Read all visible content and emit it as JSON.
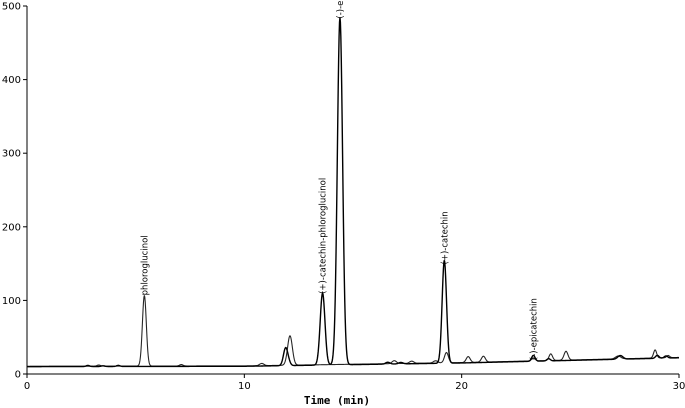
{
  "chart_data": {
    "type": "line",
    "title": "",
    "xlabel": "Time (min)",
    "ylabel": "",
    "xlim": [
      0,
      30
    ],
    "ylim": [
      0,
      500
    ],
    "x_ticks": [
      0,
      10,
      20,
      30
    ],
    "y_ticks": [
      0,
      100,
      200,
      300,
      400,
      500
    ],
    "grid": false,
    "series_color": "#000000",
    "baseline": [
      [
        0,
        10
      ],
      [
        10,
        10.5
      ],
      [
        20,
        15
      ],
      [
        30,
        22
      ]
    ],
    "series": [
      {
        "baseline_offset": 0,
        "peaks": [
          [
            2.8,
            1.5,
            0.08
          ],
          [
            3.5,
            1,
            0.08
          ],
          [
            4.2,
            1.5,
            0.08
          ],
          [
            11.9,
            24,
            0.1
          ],
          [
            12.05,
            3,
            0.08
          ],
          [
            13.6,
            98,
            0.11
          ],
          [
            14.4,
            472,
            0.12
          ],
          [
            16.6,
            2.5,
            0.1
          ],
          [
            17.2,
            2,
            0.1
          ],
          [
            19.2,
            138,
            0.1
          ],
          [
            19.3,
            4,
            0.08
          ],
          [
            23.3,
            8,
            0.08
          ],
          [
            24.0,
            3,
            0.08
          ],
          [
            27.3,
            5,
            0.12
          ],
          [
            29.0,
            4,
            0.08
          ],
          [
            29.4,
            3,
            0.08
          ]
        ]
      },
      {
        "baseline_offset": 0.5,
        "peaks": [
          [
            3.3,
            1.5,
            0.08
          ],
          [
            5.4,
            96,
            0.09
          ],
          [
            7.1,
            2,
            0.08
          ],
          [
            10.8,
            3,
            0.1
          ],
          [
            12.1,
            40,
            0.11
          ],
          [
            16.9,
            4,
            0.1
          ],
          [
            17.7,
            3,
            0.1
          ],
          [
            18.8,
            3,
            0.1
          ],
          [
            19.3,
            14,
            0.09
          ],
          [
            20.3,
            8,
            0.09
          ],
          [
            21.0,
            8,
            0.09
          ],
          [
            23.3,
            4,
            0.08
          ],
          [
            24.1,
            9,
            0.08
          ],
          [
            24.8,
            12,
            0.09
          ],
          [
            27.2,
            4,
            0.12
          ],
          [
            28.9,
            11,
            0.07
          ],
          [
            29.5,
            3,
            0.07
          ]
        ]
      }
    ],
    "annotations": [
      {
        "text": "phloroglucinol",
        "x": 5.4,
        "y": 96
      },
      {
        "text": "(+)-catechin-phloroglucinol",
        "x": 13.6,
        "y": 98
      },
      {
        "text": "(-)-epicatechin-phloroglucinol",
        "x": 14.4,
        "y": 472
      },
      {
        "text": "(+)-catechin",
        "x": 19.2,
        "y": 138
      },
      {
        "text": "(-)-epicatechin",
        "x": 23.3,
        "y": 8
      }
    ]
  }
}
